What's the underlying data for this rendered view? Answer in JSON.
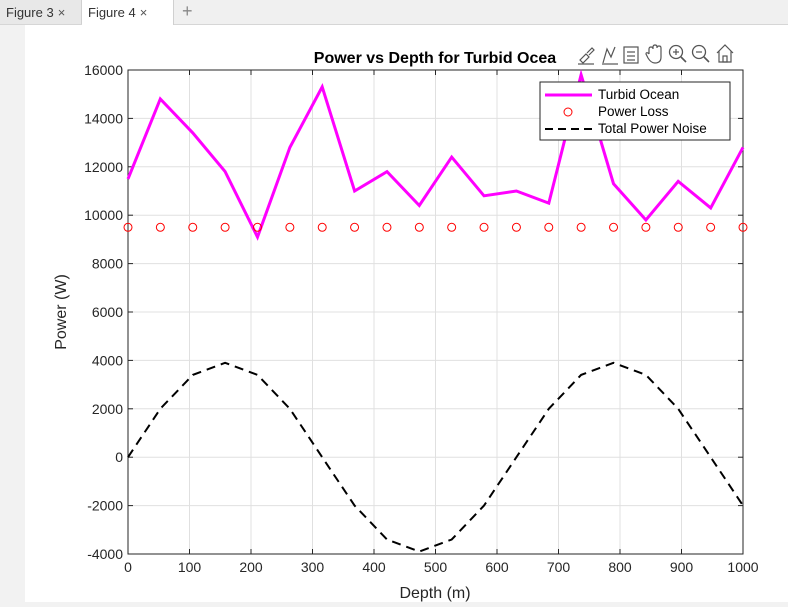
{
  "tabs": [
    {
      "label": "Figure 3",
      "close": "×"
    },
    {
      "label": "Figure 4",
      "close": "×"
    }
  ],
  "tab_add": "+",
  "toolbar_icons": [
    "brush-icon",
    "data-tips-icon",
    "legend-icon",
    "pan-icon",
    "zoom-in-icon",
    "zoom-out-icon",
    "home-icon"
  ],
  "chart_data": {
    "type": "line",
    "title": "Power vs Depth for Turbid Ocea",
    "xlabel": "Depth (m)",
    "ylabel": "Power (W)",
    "xlim": [
      0,
      1000
    ],
    "ylim": [
      -4000,
      16000
    ],
    "xticks": [
      0,
      100,
      200,
      300,
      400,
      500,
      600,
      700,
      800,
      900,
      1000
    ],
    "yticks": [
      -4000,
      -2000,
      0,
      2000,
      4000,
      6000,
      8000,
      10000,
      12000,
      14000,
      16000
    ],
    "grid": true,
    "legend_position": "top-right",
    "series": [
      {
        "name": "Turbid Ocean",
        "style": "solid",
        "color": "#ff00ff",
        "x": [
          0,
          52.6,
          105.3,
          157.9,
          210.5,
          263.2,
          315.8,
          368.4,
          421.1,
          473.7,
          526.3,
          578.9,
          631.6,
          684.2,
          736.8,
          789.5,
          842.1,
          894.7,
          947.4,
          1000
        ],
        "y": [
          11500,
          14800,
          13400,
          11800,
          9100,
          12800,
          15300,
          11000,
          11800,
          10400,
          12400,
          10800,
          11000,
          10500,
          15800,
          11300,
          9800,
          11400,
          10300,
          12800
        ]
      },
      {
        "name": "Power Loss",
        "style": "markers",
        "color": "#ff0000",
        "x": [
          0,
          52.6,
          105.3,
          157.9,
          210.5,
          263.2,
          315.8,
          368.4,
          421.1,
          473.7,
          526.3,
          578.9,
          631.6,
          684.2,
          736.8,
          789.5,
          842.1,
          894.7,
          947.4,
          1000
        ],
        "y": [
          9500,
          9500,
          9500,
          9500,
          9500,
          9500,
          9500,
          9500,
          9500,
          9500,
          9500,
          9500,
          9500,
          9500,
          9500,
          9500,
          9500,
          9500,
          9500,
          9500
        ]
      },
      {
        "name": "Total Power Noise",
        "style": "dashed",
        "color": "#000000",
        "x": [
          0,
          52.6,
          105.3,
          157.9,
          210.5,
          263.2,
          315.8,
          368.4,
          421.1,
          473.7,
          526.3,
          578.9,
          631.6,
          684.2,
          736.8,
          789.5,
          842.1,
          894.7,
          947.4,
          1000
        ],
        "y": [
          0,
          2000,
          3400,
          3900,
          3400,
          2000,
          0,
          -2000,
          -3400,
          -3900,
          -3400,
          -2000,
          0,
          2000,
          3400,
          3900,
          3400,
          2000,
          0,
          -2000
        ]
      }
    ]
  }
}
